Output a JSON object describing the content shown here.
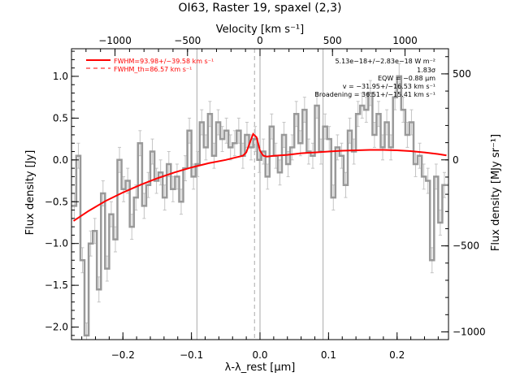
{
  "chart_data": {
    "type": "line",
    "title": "OI63, Raster 19, spaxel (2,3)",
    "xlabel": "λ-λ_rest [μm]",
    "ylabel": "Flux density [Jy]",
    "x2label": "Velocity [km s⁻¹]",
    "y2label": "Flux density [MJy sr⁻¹]",
    "xlim": [
      -0.275,
      0.275
    ],
    "ylim": [
      -2.15,
      1.33
    ],
    "x2lim": [
      -1300,
      1300
    ],
    "y2lim": [
      -1045,
      646
    ],
    "x_ticks": [
      -0.2,
      -0.1,
      0.0,
      0.1,
      0.2
    ],
    "x_tick_labels": [
      "−0.2",
      "−0.1",
      "0.0",
      "0.1",
      "0.2"
    ],
    "y_ticks": [
      1.0,
      0.5,
      0.0,
      -0.5,
      -1.0,
      -1.5,
      -2.0
    ],
    "y_tick_labels": [
      "1.0",
      "0.5",
      "0.0",
      "−0.5",
      "−1.0",
      "−1.5",
      "−2.0"
    ],
    "x2_ticks": [
      -1000,
      -500,
      0,
      500,
      1000
    ],
    "x2_tick_labels": [
      "−1000",
      "−500",
      "0",
      "500",
      "1000"
    ],
    "y2_ticks": [
      500,
      0,
      -500,
      -1000
    ],
    "y2_tick_labels": [
      "500",
      "0",
      "−500",
      "−1000"
    ],
    "vertical_lines": [
      {
        "x": -0.092,
        "style": "solid"
      },
      {
        "x": 0.0,
        "style": "solid"
      },
      {
        "x": 0.092,
        "style": "solid"
      },
      {
        "x": -0.008,
        "style": "dashed"
      }
    ],
    "legend": [
      {
        "label": "FWHM=93.98+/−39.58 km s⁻¹",
        "style": "solid",
        "color": "#ff0000"
      },
      {
        "label": "FWHM_th=86.57 km s⁻¹",
        "style": "dashed",
        "color": "#ff0000"
      }
    ],
    "annotations": [
      "5.13e−18+/−2.83e−18 W m⁻²",
      "1.83σ",
      "EQW = −0.88 μm",
      "v = −31.95+/−16.53 km s⁻¹",
      "Broadening = 36.51+/−15.41 km s⁻¹"
    ],
    "series": [
      {
        "style": "steps-with-errorbars",
        "color": "#999999",
        "x": [
          -0.271,
          -0.265,
          -0.259,
          -0.253,
          -0.247,
          -0.241,
          -0.235,
          -0.229,
          -0.223,
          -0.217,
          -0.211,
          -0.205,
          -0.199,
          -0.193,
          -0.187,
          -0.181,
          -0.175,
          -0.169,
          -0.163,
          -0.157,
          -0.151,
          -0.145,
          -0.139,
          -0.133,
          -0.127,
          -0.121,
          -0.115,
          -0.109,
          -0.103,
          -0.097,
          -0.091,
          -0.085,
          -0.079,
          -0.073,
          -0.067,
          -0.061,
          -0.055,
          -0.049,
          -0.043,
          -0.037,
          -0.031,
          -0.025,
          -0.019,
          -0.013,
          -0.007,
          -0.001,
          0.005,
          0.011,
          0.017,
          0.023,
          0.029,
          0.035,
          0.041,
          0.047,
          0.053,
          0.059,
          0.065,
          0.071,
          0.077,
          0.083,
          0.089,
          0.095,
          0.101,
          0.107,
          0.113,
          0.119,
          0.125,
          0.131,
          0.137,
          0.143,
          0.149,
          0.155,
          0.161,
          0.167,
          0.173,
          0.179,
          0.185,
          0.191,
          0.197,
          0.203,
          0.209,
          0.215,
          0.221,
          0.227,
          0.233,
          0.239,
          0.245,
          0.251,
          0.257,
          0.263,
          0.269
        ],
        "values": [
          -0.55,
          0.05,
          -1.2,
          -2.1,
          -1.0,
          -0.85,
          -1.55,
          -0.4,
          -1.3,
          -0.65,
          -0.95,
          0.0,
          -0.35,
          -0.25,
          -0.8,
          -0.45,
          0.2,
          -0.55,
          -0.3,
          0.1,
          -0.25,
          -0.15,
          -0.45,
          -0.05,
          -0.35,
          -0.2,
          -0.5,
          -0.1,
          0.35,
          -0.2,
          -0.05,
          0.45,
          0.15,
          0.55,
          0.05,
          0.45,
          0.25,
          0.35,
          0.15,
          0.2,
          0.35,
          0.05,
          0.3,
          0.15,
          0.25,
          0.0,
          0.1,
          -0.2,
          0.4,
          0.05,
          -0.15,
          0.3,
          -0.05,
          0.15,
          0.55,
          0.2,
          0.6,
          0.1,
          0.05,
          0.65,
          0.1,
          0.4,
          0.25,
          -0.45,
          0.15,
          0.05,
          -0.3,
          0.35,
          0.1,
          0.55,
          0.65,
          0.6,
          0.8,
          0.3,
          0.55,
          0.15,
          0.45,
          0.15,
          0.75,
          1.0,
          0.6,
          0.3,
          0.45,
          -0.05,
          0.05,
          -0.2,
          -0.25,
          -1.2,
          -0.2,
          -0.75,
          -0.3
        ],
        "errors": [
          0.15,
          0.15,
          0.15,
          0.15,
          0.15,
          0.15,
          0.15,
          0.15,
          0.15,
          0.15,
          0.15,
          0.15,
          0.15,
          0.15,
          0.15,
          0.15,
          0.15,
          0.15,
          0.15,
          0.15,
          0.15,
          0.15,
          0.15,
          0.15,
          0.15,
          0.15,
          0.15,
          0.15,
          0.15,
          0.15,
          0.15,
          0.15,
          0.15,
          0.15,
          0.15,
          0.15,
          0.15,
          0.15,
          0.15,
          0.15,
          0.15,
          0.15,
          0.15,
          0.15,
          0.15,
          0.15,
          0.15,
          0.15,
          0.15,
          0.15,
          0.15,
          0.15,
          0.15,
          0.15,
          0.15,
          0.15,
          0.15,
          0.15,
          0.15,
          0.15,
          0.15,
          0.15,
          0.15,
          0.15,
          0.15,
          0.15,
          0.15,
          0.15,
          0.15,
          0.15,
          0.15,
          0.15,
          0.15,
          0.15,
          0.15,
          0.15,
          0.15,
          0.15,
          0.15,
          0.15,
          0.15,
          0.15,
          0.15,
          0.15,
          0.15,
          0.15,
          0.15,
          0.15,
          0.15,
          0.15,
          0.15
        ]
      },
      {
        "style": "model-fit",
        "color": "#ff0000",
        "x": [
          -0.272,
          -0.25,
          -0.225,
          -0.2,
          -0.175,
          -0.15,
          -0.125,
          -0.1,
          -0.075,
          -0.05,
          -0.035,
          -0.025,
          -0.02,
          -0.015,
          -0.01,
          -0.005,
          0.0,
          0.005,
          0.01,
          0.02,
          0.04,
          0.06,
          0.08,
          0.1,
          0.12,
          0.14,
          0.16,
          0.18,
          0.2,
          0.22,
          0.24,
          0.26,
          0.272
        ],
        "values": [
          -0.73,
          -0.61,
          -0.49,
          -0.39,
          -0.3,
          -0.22,
          -0.15,
          -0.09,
          -0.04,
          0.0,
          0.03,
          0.05,
          0.09,
          0.2,
          0.31,
          0.27,
          0.11,
          0.05,
          0.04,
          0.05,
          0.06,
          0.08,
          0.09,
          0.1,
          0.11,
          0.115,
          0.12,
          0.12,
          0.115,
          0.105,
          0.09,
          0.07,
          0.055
        ]
      }
    ]
  }
}
